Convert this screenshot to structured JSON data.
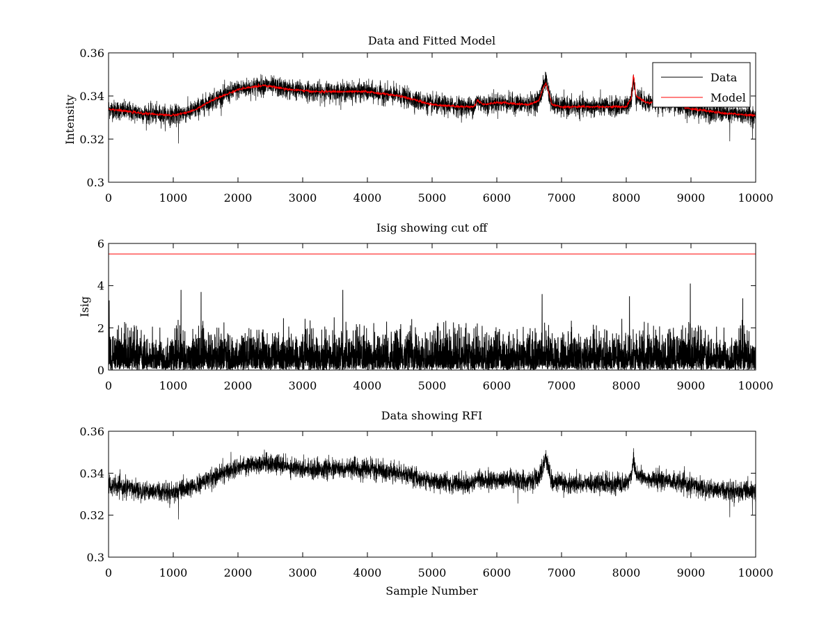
{
  "chart_data": [
    {
      "type": "line",
      "title": "Data and Fitted Model",
      "xlabel": "",
      "ylabel": "Intensity",
      "xlim": [
        0,
        10000
      ],
      "ylim": [
        0.3,
        0.36
      ],
      "xticks": [
        0,
        1000,
        2000,
        3000,
        4000,
        5000,
        6000,
        7000,
        8000,
        9000,
        10000
      ],
      "xtick_labels": [
        "0",
        "1000",
        "2000",
        "3000",
        "4000",
        "5000",
        "6000",
        "7000",
        "8000",
        "9000",
        "10000"
      ],
      "yticks": [
        0.3,
        0.32,
        0.34,
        0.36
      ],
      "ytick_labels": [
        "0.3",
        "0.32",
        "0.34",
        "0.36"
      ],
      "legend": {
        "position": "top-right",
        "entries": [
          "Data",
          "Model"
        ]
      },
      "series": [
        {
          "name": "Data",
          "color": "#000000",
          "noise_amplitude": 0.005,
          "x": [
            0,
            500,
            1000,
            1300,
            1600,
            2000,
            2400,
            2800,
            3200,
            3600,
            4000,
            4500,
            5000,
            5500,
            5650,
            5700,
            5800,
            6000,
            6500,
            6650,
            6720,
            6760,
            6800,
            6850,
            7000,
            7500,
            8000,
            8080,
            8110,
            8150,
            8300,
            8600,
            9000,
            9500,
            10000
          ],
          "values": [
            0.334,
            0.332,
            0.331,
            0.333,
            0.338,
            0.343,
            0.345,
            0.343,
            0.342,
            0.342,
            0.342,
            0.34,
            0.336,
            0.335,
            0.335,
            0.338,
            0.336,
            0.337,
            0.336,
            0.338,
            0.344,
            0.348,
            0.342,
            0.336,
            0.335,
            0.335,
            0.335,
            0.339,
            0.347,
            0.34,
            0.337,
            0.337,
            0.334,
            0.332,
            0.331
          ],
          "spikes": [
            {
              "x": 6760,
              "value": 0.351
            },
            {
              "x": 8110,
              "value": 0.35
            },
            {
              "x": 1080,
              "value": 0.318
            },
            {
              "x": 9600,
              "value": 0.319
            },
            {
              "x": 9950,
              "value": 0.32
            }
          ]
        },
        {
          "name": "Model",
          "color": "#ff0000",
          "noise_amplitude": 0.0006,
          "x": [
            0,
            500,
            1000,
            1300,
            1600,
            2000,
            2400,
            2800,
            3200,
            3600,
            4000,
            4500,
            5000,
            5500,
            5650,
            5700,
            5800,
            6000,
            6500,
            6650,
            6720,
            6760,
            6800,
            6850,
            7000,
            7500,
            8000,
            8080,
            8110,
            8150,
            8300,
            8600,
            9000,
            9500,
            10000
          ],
          "values": [
            0.334,
            0.332,
            0.331,
            0.333,
            0.338,
            0.343,
            0.345,
            0.343,
            0.342,
            0.342,
            0.342,
            0.34,
            0.336,
            0.335,
            0.335,
            0.338,
            0.336,
            0.337,
            0.336,
            0.338,
            0.344,
            0.346,
            0.342,
            0.336,
            0.335,
            0.335,
            0.335,
            0.339,
            0.35,
            0.34,
            0.337,
            0.337,
            0.334,
            0.332,
            0.331
          ],
          "spikes": []
        }
      ]
    },
    {
      "type": "line",
      "title": "Isig showing cut off",
      "xlabel": "",
      "ylabel": "Isig",
      "xlim": [
        0,
        10000
      ],
      "ylim": [
        0,
        6
      ],
      "xticks": [
        0,
        1000,
        2000,
        3000,
        4000,
        5000,
        6000,
        7000,
        8000,
        9000,
        10000
      ],
      "xtick_labels": [
        "0",
        "1000",
        "2000",
        "3000",
        "4000",
        "5000",
        "6000",
        "7000",
        "8000",
        "9000",
        "10000"
      ],
      "yticks": [
        0,
        2,
        4,
        6
      ],
      "ytick_labels": [
        "0",
        "2",
        "4",
        "6"
      ],
      "series": [
        {
          "name": "Isig",
          "color": "#000000",
          "distribution": "abs-normal",
          "typical_max": 2.5,
          "peaks": [
            {
              "x": 10,
              "value": 3.3
            },
            {
              "x": 1120,
              "value": 3.8
            },
            {
              "x": 1430,
              "value": 3.7
            },
            {
              "x": 3620,
              "value": 3.8
            },
            {
              "x": 6700,
              "value": 3.6
            },
            {
              "x": 8050,
              "value": 3.5
            },
            {
              "x": 8990,
              "value": 4.1
            },
            {
              "x": 9800,
              "value": 3.4
            }
          ]
        },
        {
          "name": "Cut off",
          "color": "#ff0000",
          "x": [
            0,
            10000
          ],
          "values": [
            5.5,
            5.5
          ]
        }
      ]
    },
    {
      "type": "line",
      "title": "Data showing RFI",
      "xlabel": "Sample Number",
      "ylabel": "",
      "xlim": [
        0,
        10000
      ],
      "ylim": [
        0.3,
        0.36
      ],
      "xticks": [
        0,
        1000,
        2000,
        3000,
        4000,
        5000,
        6000,
        7000,
        8000,
        9000,
        10000
      ],
      "xtick_labels": [
        "0",
        "1000",
        "2000",
        "3000",
        "4000",
        "5000",
        "6000",
        "7000",
        "8000",
        "9000",
        "10000"
      ],
      "yticks": [
        0.3,
        0.32,
        0.34,
        0.36
      ],
      "ytick_labels": [
        "0.3",
        "0.32",
        "0.34",
        "0.36"
      ],
      "series": [
        {
          "name": "Data",
          "color": "#000000",
          "noise_amplitude": 0.005,
          "x": [
            0,
            500,
            1000,
            1300,
            1600,
            2000,
            2400,
            2800,
            3200,
            3600,
            4000,
            4500,
            5000,
            5500,
            5650,
            5700,
            5800,
            6000,
            6500,
            6650,
            6720,
            6760,
            6800,
            6850,
            7000,
            7500,
            8000,
            8080,
            8110,
            8150,
            8300,
            8600,
            9000,
            9500,
            10000
          ],
          "values": [
            0.334,
            0.332,
            0.331,
            0.333,
            0.338,
            0.343,
            0.345,
            0.343,
            0.342,
            0.342,
            0.342,
            0.34,
            0.336,
            0.335,
            0.335,
            0.338,
            0.336,
            0.337,
            0.336,
            0.338,
            0.344,
            0.348,
            0.342,
            0.336,
            0.335,
            0.335,
            0.335,
            0.339,
            0.347,
            0.34,
            0.337,
            0.337,
            0.334,
            0.332,
            0.331
          ],
          "spikes": [
            {
              "x": 6760,
              "value": 0.351
            },
            {
              "x": 8110,
              "value": 0.35
            },
            {
              "x": 1080,
              "value": 0.318
            },
            {
              "x": 9600,
              "value": 0.319
            },
            {
              "x": 9950,
              "value": 0.32
            }
          ]
        }
      ]
    }
  ]
}
